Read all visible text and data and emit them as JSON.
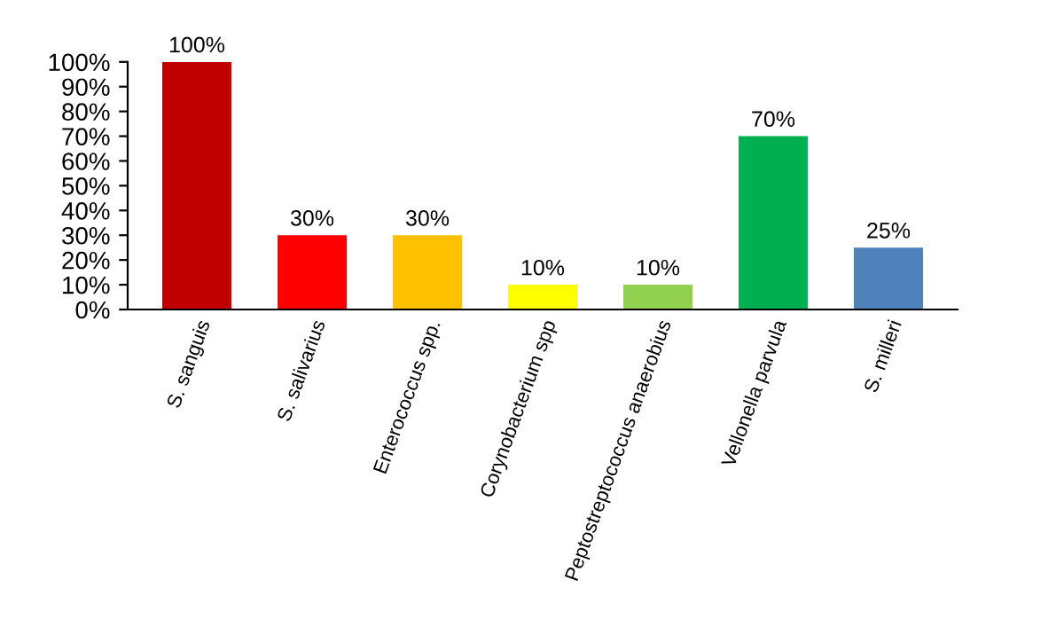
{
  "chart_data": {
    "type": "bar",
    "categories": [
      "S. sanguis",
      "S. salivarius",
      "Enterococcus spp.",
      "Corynobacterium spp",
      "Peptostreptococcus anaerobius",
      "Vellonella parvula",
      "S. milleri"
    ],
    "values": [
      100,
      30,
      30,
      10,
      10,
      70,
      25
    ],
    "colors": [
      "#c00000",
      "#ff0000",
      "#ffc000",
      "#ffff00",
      "#92d050",
      "#00b050",
      "#4f81bd"
    ],
    "value_labels": [
      "100%",
      "30%",
      "30%",
      "10%",
      "10%",
      "70%",
      "25%"
    ],
    "ylim": [
      0,
      100
    ],
    "yticks": [
      {
        "value": 0,
        "label": "0%"
      },
      {
        "value": 10,
        "label": "10%"
      },
      {
        "value": 20,
        "label": "20%"
      },
      {
        "value": 30,
        "label": "30%"
      },
      {
        "value": 40,
        "label": "40%"
      },
      {
        "value": 50,
        "label": "50%"
      },
      {
        "value": 60,
        "label": "60%"
      },
      {
        "value": 70,
        "label": "70%"
      },
      {
        "value": 80,
        "label": "80%"
      },
      {
        "value": 90,
        "label": "90%"
      },
      {
        "value": 100,
        "label": "100%"
      }
    ],
    "grid": false,
    "legend": false
  }
}
